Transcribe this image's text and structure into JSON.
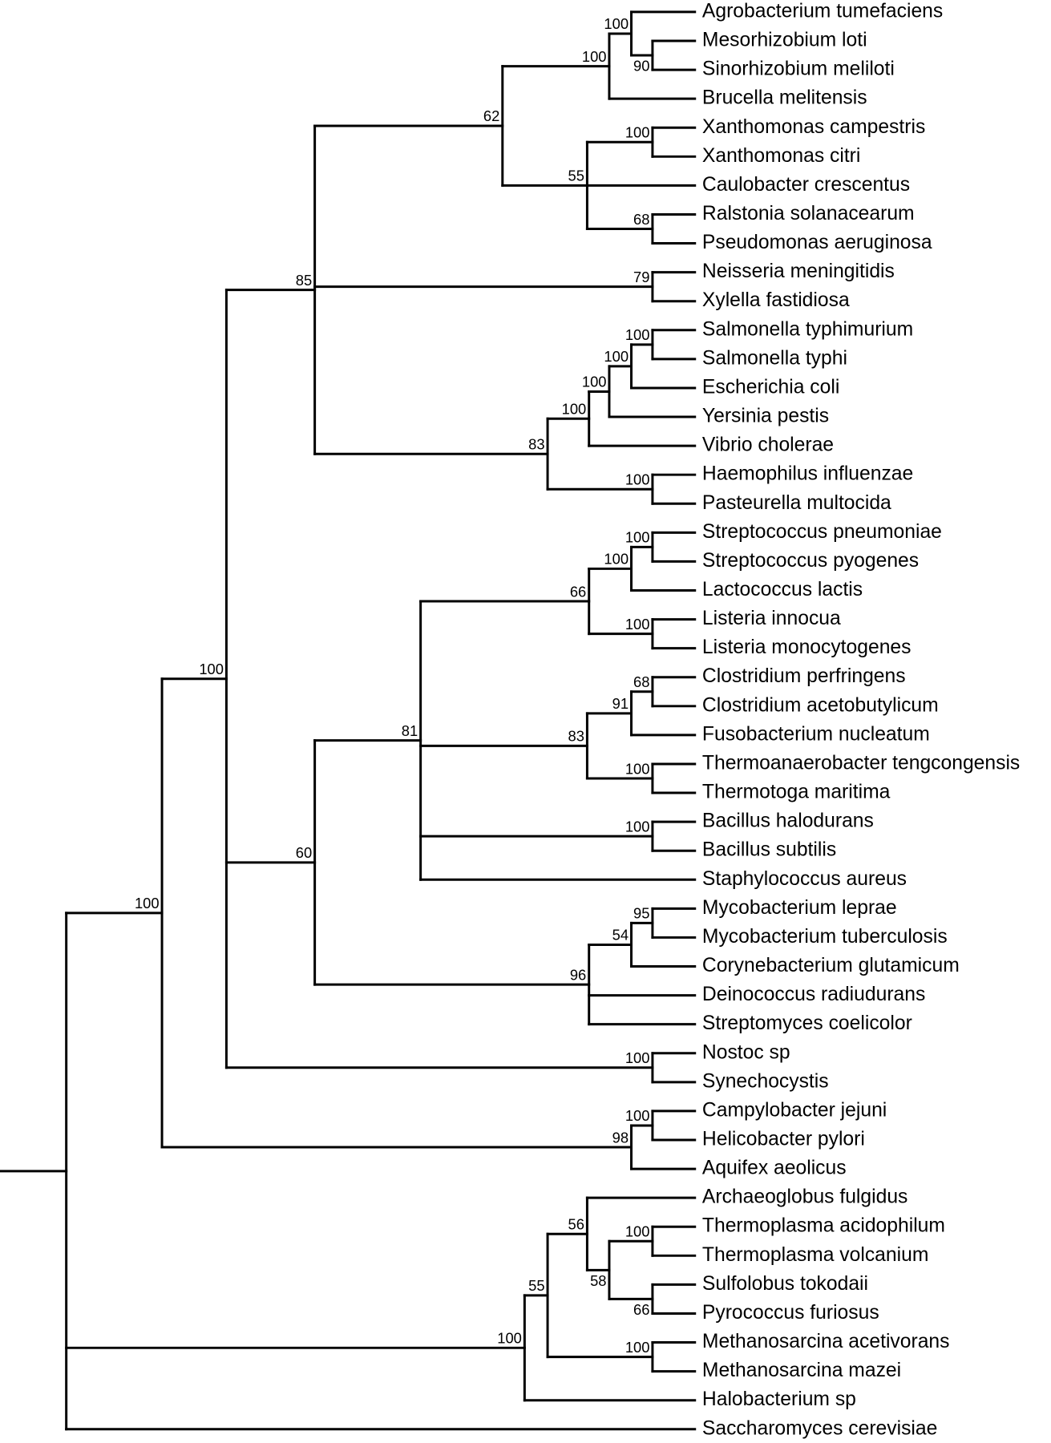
{
  "chart_data": {
    "type": "phylogenetic-tree",
    "tree": {
      "id": "root",
      "children": [
        {
          "id": "bact",
          "support": "100",
          "children": [
            {
              "id": "b2",
              "support": "100",
              "children": [
                {
                  "id": "n85",
                  "support": "85",
                  "children": [
                    {
                      "id": "n62",
                      "support": "62",
                      "children": [
                        {
                          "id": "rhiz",
                          "support": "100",
                          "children": [
                            {
                              "id": "rhiz2",
                              "support": "100",
                              "children": [
                                {
                                  "name": "Agrobacterium tumefaciens"
                                },
                                {
                                  "id": "n90",
                                  "support": "90",
                                  "children": [
                                    {
                                      "name": "Mesorhizobium loti"
                                    },
                                    {
                                      "name": "Sinorhizobium meliloti"
                                    }
                                  ]
                                }
                              ]
                            },
                            {
                              "name": "Brucella melitensis"
                            }
                          ]
                        },
                        {
                          "id": "n55",
                          "support": "55",
                          "children": [
                            {
                              "id": "xan",
                              "support": "100",
                              "children": [
                                {
                                  "name": "Xanthomonas campestris"
                                },
                                {
                                  "name": "Xanthomonas citri"
                                }
                              ]
                            },
                            {
                              "name": "Caulobacter crescentus"
                            },
                            {
                              "id": "n68",
                              "support": "68",
                              "children": [
                                {
                                  "name": "Ralstonia solanacearum"
                                },
                                {
                                  "name": "Pseudomonas aeruginosa"
                                }
                              ]
                            }
                          ]
                        }
                      ]
                    },
                    {
                      "id": "n79",
                      "support": "79",
                      "children": [
                        {
                          "name": "Neisseria meningitidis"
                        },
                        {
                          "name": "Xylella fastidiosa"
                        }
                      ]
                    },
                    {
                      "id": "n83a",
                      "support": "83",
                      "children": [
                        {
                          "id": "ent1",
                          "support": "100",
                          "children": [
                            {
                              "id": "ent2",
                              "support": "100",
                              "children": [
                                {
                                  "id": "ent3",
                                  "support": "100",
                                  "children": [
                                    {
                                      "id": "sal",
                                      "support": "100",
                                      "children": [
                                        {
                                          "name": "Salmonella typhimurium"
                                        },
                                        {
                                          "name": "Salmonella typhi"
                                        }
                                      ]
                                    },
                                    {
                                      "name": "Escherichia coli"
                                    }
                                  ]
                                },
                                {
                                  "name": "Yersinia pestis"
                                }
                              ]
                            },
                            {
                              "name": "Vibrio cholerae"
                            }
                          ]
                        },
                        {
                          "id": "hae",
                          "support": "100",
                          "children": [
                            {
                              "name": "Haemophilus influenzae"
                            },
                            {
                              "name": "Pasteurella multocida"
                            }
                          ]
                        }
                      ]
                    }
                  ]
                },
                {
                  "id": "n60",
                  "support": "60",
                  "children": [
                    {
                      "id": "n81",
                      "support": "81",
                      "children": [
                        {
                          "id": "n66",
                          "support": "66",
                          "children": [
                            {
                              "id": "strep1",
                              "support": "100",
                              "children": [
                                {
                                  "id": "strep2",
                                  "support": "100",
                                  "children": [
                                    {
                                      "name": "Streptococcus pneumoniae"
                                    },
                                    {
                                      "name": "Streptococcus pyogenes"
                                    }
                                  ]
                                },
                                {
                                  "name": "Lactococcus lactis"
                                }
                              ]
                            },
                            {
                              "id": "list",
                              "support": "100",
                              "children": [
                                {
                                  "name": "Listeria innocua"
                                },
                                {
                                  "name": "Listeria monocytogenes"
                                }
                              ]
                            }
                          ]
                        },
                        {
                          "id": "n83b",
                          "support": "83",
                          "children": [
                            {
                              "id": "n91",
                              "support": "91",
                              "children": [
                                {
                                  "id": "n68b",
                                  "support": "68",
                                  "children": [
                                    {
                                      "name": "Clostridium perfringens"
                                    },
                                    {
                                      "name": "Clostridium acetobutylicum"
                                    }
                                  ]
                                },
                                {
                                  "name": "Fusobacterium nucleatum"
                                }
                              ]
                            },
                            {
                              "id": "therm",
                              "support": "100",
                              "children": [
                                {
                                  "name": "Thermoanaerobacter tengcongensis"
                                },
                                {
                                  "name": "Thermotoga maritima"
                                }
                              ]
                            }
                          ]
                        },
                        {
                          "id": "bac",
                          "support": "100",
                          "children": [
                            {
                              "name": "Bacillus halodurans"
                            },
                            {
                              "name": "Bacillus subtilis"
                            }
                          ]
                        },
                        {
                          "name": "Staphylococcus aureus"
                        }
                      ]
                    },
                    {
                      "id": "n96",
                      "support": "96",
                      "children": [
                        {
                          "id": "n54",
                          "support": "54",
                          "children": [
                            {
                              "id": "n95",
                              "support": "95",
                              "children": [
                                {
                                  "name": "Mycobacterium leprae"
                                },
                                {
                                  "name": "Mycobacterium tuberculosis"
                                }
                              ]
                            },
                            {
                              "name": "Corynebacterium glutamicum"
                            }
                          ]
                        },
                        {
                          "name": "Deinococcus radiudurans"
                        },
                        {
                          "name": "Streptomyces coelicolor"
                        }
                      ]
                    }
                  ]
                },
                {
                  "id": "cyan",
                  "support": "100",
                  "children": [
                    {
                      "name": "Nostoc sp"
                    },
                    {
                      "name": "Synechocystis"
                    }
                  ]
                }
              ]
            },
            {
              "id": "n98",
              "support": "98",
              "children": [
                {
                  "id": "eps",
                  "support": "100",
                  "children": [
                    {
                      "name": "Campylobacter jejuni"
                    },
                    {
                      "name": "Helicobacter pylori"
                    }
                  ]
                },
                {
                  "name": "Aquifex aeolicus"
                }
              ]
            }
          ]
        },
        {
          "id": "arch",
          "support": "100",
          "children": [
            {
              "id": "n55b",
              "support": "55",
              "children": [
                {
                  "id": "n56",
                  "support": "56",
                  "children": [
                    {
                      "name": "Archaeoglobus fulgidus"
                    },
                    {
                      "id": "n58",
                      "support": "58",
                      "children": [
                        {
                          "id": "tpl",
                          "support": "100",
                          "children": [
                            {
                              "name": "Thermoplasma acidophilum"
                            },
                            {
                              "name": "Thermoplasma volcanium"
                            }
                          ]
                        },
                        {
                          "id": "n66b",
                          "support": "66",
                          "children": [
                            {
                              "name": "Sulfolobus tokodaii"
                            },
                            {
                              "name": "Pyrococcus furiosus"
                            }
                          ]
                        }
                      ]
                    }
                  ]
                },
                {
                  "id": "meth",
                  "support": "100",
                  "children": [
                    {
                      "name": "Methanosarcina acetivorans"
                    },
                    {
                      "name": "Methanosarcina mazei"
                    }
                  ]
                }
              ]
            },
            {
              "name": "Halobacterium sp"
            }
          ]
        },
        {
          "name": "Saccharomyces cerevisiae"
        }
      ]
    }
  }
}
